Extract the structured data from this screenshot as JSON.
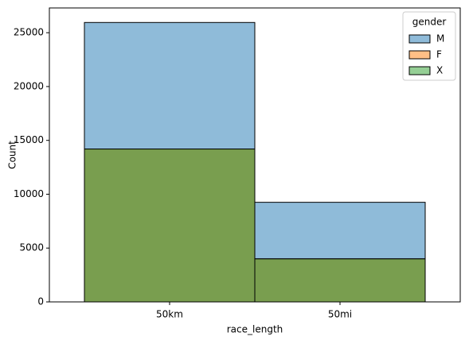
{
  "chart_data": {
    "type": "bar",
    "x_label": "race_length",
    "y_label": "Count",
    "categories": [
      "50km",
      "50mi"
    ],
    "series": [
      {
        "name": "M",
        "color": "#1f77b4",
        "values": [
          25950,
          9250
        ]
      },
      {
        "name": "F",
        "color": "#ff7f0e",
        "values": [
          14200,
          4000
        ]
      },
      {
        "name": "X",
        "color": "#2ca02c",
        "values": [
          14200,
          4000
        ]
      }
    ],
    "legend_title": "gender",
    "legend": "upper right",
    "ylim": [
      0,
      27300
    ],
    "yticks": [
      0,
      5000,
      10000,
      15000,
      20000,
      25000
    ]
  }
}
